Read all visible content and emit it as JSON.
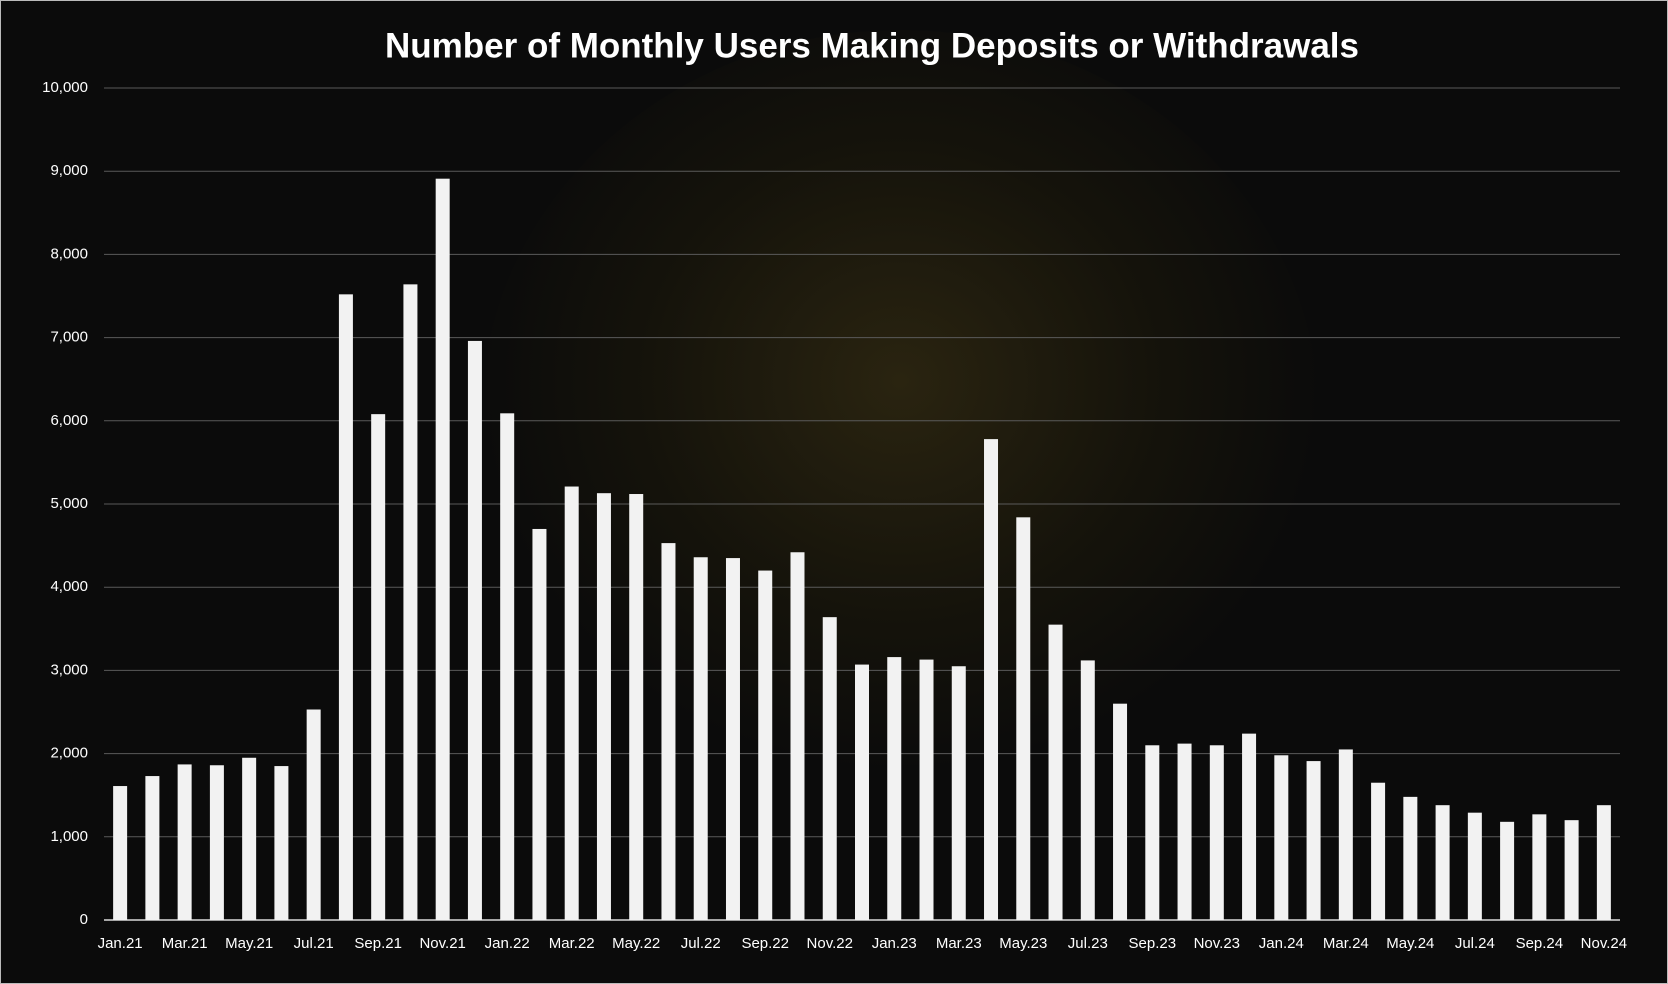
{
  "chart_data": {
    "type": "bar",
    "title": "Number of Monthly Users Making Deposits or Withdrawals",
    "categories": [
      "Jan.21",
      null,
      "Mar.21",
      null,
      "May.21",
      null,
      "Jul.21",
      null,
      "Sep.21",
      null,
      "Nov.21",
      null,
      "Jan.22",
      null,
      "Mar.22",
      null,
      "May.22",
      null,
      "Jul.22",
      null,
      "Sep.22",
      null,
      "Nov.22",
      null,
      "Jan.23",
      null,
      "Mar.23",
      null,
      "May.23",
      null,
      "Jul.23",
      null,
      "Sep.23",
      null,
      "Nov.23",
      null,
      "Jan.24",
      null,
      "Mar.24",
      null,
      "May.24",
      null,
      "Jul.24",
      null,
      "Sep.24",
      null,
      "Nov.24"
    ],
    "values": [
      1610,
      1730,
      1870,
      1860,
      1950,
      1850,
      2530,
      7520,
      6080,
      7640,
      8910,
      6960,
      6090,
      4700,
      5210,
      5130,
      5120,
      4530,
      4360,
      4350,
      4200,
      4420,
      3640,
      3070,
      3160,
      3130,
      3050,
      5780,
      4840,
      3550,
      3120,
      2600,
      2100,
      2120,
      2100,
      2240,
      1980,
      1910,
      2050,
      1650,
      1480,
      1380,
      1290,
      1180,
      1270,
      1200,
      1380
    ],
    "color": "#f2f2f2",
    "ylim": [
      0,
      10000
    ],
    "yticks": [
      0,
      {
        "value": 1000,
        "label": "1,000"
      },
      {
        "value": 2000,
        "label": "2,000"
      },
      {
        "value": 3000,
        "label": "3,000"
      },
      {
        "value": 4000,
        "label": "4,000"
      },
      {
        "value": 5000,
        "label": "5,000"
      },
      {
        "value": 6000,
        "label": "6,000"
      },
      {
        "value": 7000,
        "label": "7,000"
      },
      {
        "value": 8000,
        "label": "8,000"
      },
      {
        "value": 9000,
        "label": "9,000"
      },
      {
        "value": 10000,
        "label": "10,000"
      }
    ],
    "grid": true
  }
}
